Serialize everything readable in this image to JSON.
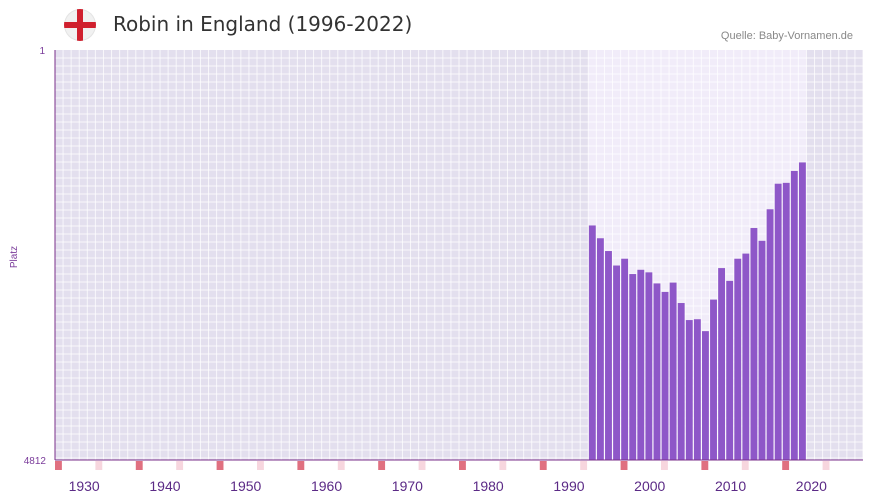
{
  "header": {
    "title": "Robin in England (1996-2022)",
    "source": "Quelle: Baby-Vornamen.de",
    "flag_icon": "england-flag-icon"
  },
  "chart_data": {
    "type": "bar",
    "title": "Robin in England (1996-2022)",
    "xlabel": "",
    "ylabel": "Platz",
    "y_inverted": true,
    "ylim": [
      1,
      4812
    ],
    "y_ticks": [
      "1",
      "4812"
    ],
    "x_ticks": [
      "1930",
      "1940",
      "1950",
      "1960",
      "1970",
      "1980",
      "1990",
      "2000",
      "2010",
      "2020"
    ],
    "xlim": [
      1928,
      2028
    ],
    "highlight_range": [
      1994,
      2021
    ],
    "colors": {
      "bar": "#8e57c8",
      "background": "#e3dfee",
      "highlight": "#f1ecf9",
      "axis": "#7a2f8a",
      "marker_strong": "#e07080",
      "marker_light": "#f7d6de"
    },
    "series": [
      {
        "name": "Robin",
        "years": [
          1994,
          1995,
          1996,
          1997,
          1998,
          1999,
          2000,
          2001,
          2002,
          2003,
          2004,
          2005,
          2006,
          2007,
          2008,
          2009,
          2010,
          2011,
          2012,
          2013,
          2014,
          2015,
          2016,
          2017,
          2018,
          2019,
          2020
        ],
        "values": [
          2060,
          2210,
          2360,
          2530,
          2450,
          2630,
          2580,
          2610,
          2740,
          2840,
          2730,
          2970,
          3170,
          3160,
          3300,
          2930,
          2560,
          2710,
          2450,
          2390,
          2090,
          2240,
          1870,
          1570,
          1560,
          1420,
          1320
        ]
      }
    ]
  }
}
